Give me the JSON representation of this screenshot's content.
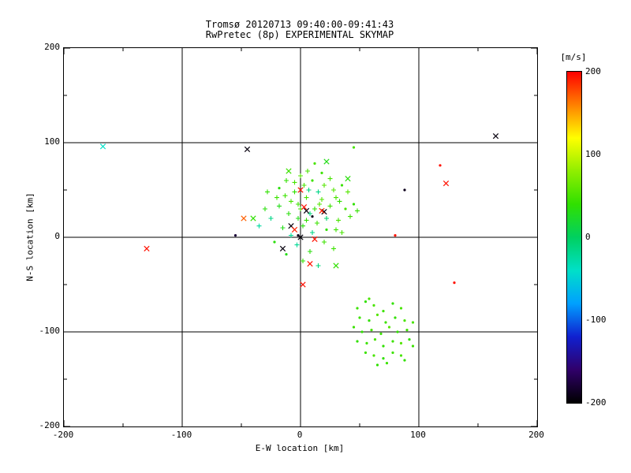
{
  "title": {
    "line1": "Tromsø 20120713 09:40:00-09:41:43",
    "line2": "RwPretec (8p) EXPERIMENTAL SKYMAP"
  },
  "axes": {
    "xlabel": "E-W location [km]",
    "ylabel": "N-S location [km]",
    "xlim": [
      -200,
      200
    ],
    "ylim": [
      -200,
      200
    ],
    "xticks": [
      -200,
      -100,
      0,
      100,
      200
    ],
    "yticks": [
      -200,
      -100,
      0,
      100,
      200
    ],
    "grid": [
      -100,
      0,
      100
    ],
    "grid_on": true
  },
  "colorbar": {
    "label": "[m/s]",
    "min": -200,
    "max": 200,
    "ticks": [
      200,
      100,
      0,
      -100,
      -200
    ],
    "stops": [
      [
        -200,
        "#000000"
      ],
      [
        -160,
        "#30006a"
      ],
      [
        -120,
        "#1020d0"
      ],
      [
        -80,
        "#00a0ff"
      ],
      [
        -40,
        "#00e0c8"
      ],
      [
        0,
        "#00d060"
      ],
      [
        40,
        "#30e000"
      ],
      [
        80,
        "#90ee00"
      ],
      [
        120,
        "#ffff00"
      ],
      [
        160,
        "#ff8000"
      ],
      [
        200,
        "#ff0000"
      ]
    ]
  },
  "chart_data": {
    "type": "scatter",
    "title": "Tromsø 20120713 09:40:00-09:41:43 / RwPretec (8p) EXPERIMENTAL SKYMAP",
    "xlabel": "E-W location [km]",
    "ylabel": "N-S location [km]",
    "value_label": "[m/s]",
    "xlim": [
      -200,
      200
    ],
    "ylim": [
      -200,
      200
    ],
    "vlim": [
      -200,
      200
    ],
    "legend_position": "colorbar-right",
    "point_format": "[x_km, y_km, velocity_mps, symbol(d=dot,p=plus,x=cross)]",
    "points": [
      [
        -2,
        35,
        45,
        "p"
      ],
      [
        5,
        42,
        50,
        "p"
      ],
      [
        12,
        30,
        40,
        "p"
      ],
      [
        -10,
        25,
        35,
        "p"
      ],
      [
        18,
        40,
        55,
        "p"
      ],
      [
        25,
        33,
        45,
        "p"
      ],
      [
        -18,
        33,
        30,
        "p"
      ],
      [
        3,
        55,
        50,
        "p"
      ],
      [
        10,
        60,
        45,
        "d"
      ],
      [
        20,
        55,
        55,
        "p"
      ],
      [
        -5,
        48,
        40,
        "p"
      ],
      [
        30,
        42,
        50,
        "p"
      ],
      [
        -25,
        20,
        -15,
        "p"
      ],
      [
        -15,
        10,
        30,
        "p"
      ],
      [
        -8,
        2,
        -20,
        "p"
      ],
      [
        2,
        12,
        35,
        "p"
      ],
      [
        14,
        15,
        45,
        "p"
      ],
      [
        22,
        8,
        40,
        "d"
      ],
      [
        32,
        18,
        50,
        "p"
      ],
      [
        8,
        25,
        -10,
        "p"
      ],
      [
        -2,
        20,
        30,
        "p"
      ],
      [
        -20,
        42,
        45,
        "p"
      ],
      [
        -30,
        30,
        35,
        "p"
      ],
      [
        38,
        30,
        50,
        "d"
      ],
      [
        42,
        22,
        45,
        "p"
      ],
      [
        15,
        48,
        -15,
        "p"
      ],
      [
        28,
        50,
        55,
        "p"
      ],
      [
        6,
        70,
        50,
        "p"
      ],
      [
        18,
        68,
        45,
        "d"
      ],
      [
        -12,
        60,
        40,
        "p"
      ],
      [
        0,
        65,
        55,
        "p"
      ],
      [
        12,
        78,
        50,
        "d"
      ],
      [
        -3,
        -8,
        -20,
        "p"
      ],
      [
        8,
        -15,
        35,
        "p"
      ],
      [
        20,
        -5,
        45,
        "p"
      ],
      [
        -12,
        -18,
        30,
        "d"
      ],
      [
        2,
        -25,
        40,
        "p"
      ],
      [
        15,
        -30,
        -10,
        "p"
      ],
      [
        28,
        -12,
        45,
        "p"
      ],
      [
        -22,
        -5,
        35,
        "d"
      ],
      [
        35,
        5,
        50,
        "p"
      ],
      [
        45,
        35,
        40,
        "d"
      ],
      [
        40,
        48,
        55,
        "p"
      ],
      [
        -35,
        12,
        -25,
        "p"
      ],
      [
        -28,
        48,
        40,
        "p"
      ],
      [
        22,
        20,
        -5,
        "p"
      ],
      [
        30,
        8,
        45,
        "p"
      ],
      [
        -8,
        38,
        50,
        "p"
      ],
      [
        -18,
        52,
        35,
        "d"
      ],
      [
        5,
        18,
        40,
        "p"
      ],
      [
        25,
        62,
        50,
        "p"
      ],
      [
        35,
        55,
        45,
        "d"
      ],
      [
        48,
        28,
        40,
        "p"
      ],
      [
        10,
        5,
        -15,
        "p"
      ],
      [
        0,
        30,
        45,
        "p"
      ],
      [
        -5,
        58,
        50,
        "p"
      ],
      [
        16,
        35,
        55,
        "p"
      ],
      [
        33,
        38,
        40,
        "p"
      ],
      [
        -13,
        44,
        45,
        "p"
      ],
      [
        7,
        50,
        -10,
        "p"
      ],
      [
        22,
        80,
        30,
        "x"
      ],
      [
        -40,
        20,
        40,
        "x"
      ],
      [
        40,
        62,
        35,
        "x"
      ],
      [
        -10,
        70,
        45,
        "x"
      ],
      [
        30,
        -30,
        40,
        "x"
      ],
      [
        48,
        -75,
        45,
        "d"
      ],
      [
        55,
        -68,
        40,
        "d"
      ],
      [
        62,
        -72,
        50,
        "d"
      ],
      [
        70,
        -78,
        45,
        "d"
      ],
      [
        78,
        -70,
        40,
        "d"
      ],
      [
        85,
        -75,
        50,
        "d"
      ],
      [
        50,
        -85,
        45,
        "d"
      ],
      [
        58,
        -88,
        40,
        "d"
      ],
      [
        65,
        -82,
        55,
        "d"
      ],
      [
        72,
        -90,
        45,
        "d"
      ],
      [
        80,
        -85,
        40,
        "d"
      ],
      [
        88,
        -88,
        50,
        "d"
      ],
      [
        45,
        -95,
        45,
        "d"
      ],
      [
        52,
        -100,
        40,
        "d"
      ],
      [
        60,
        -98,
        50,
        "d"
      ],
      [
        68,
        -102,
        45,
        "d"
      ],
      [
        75,
        -95,
        55,
        "d"
      ],
      [
        82,
        -100,
        40,
        "d"
      ],
      [
        90,
        -98,
        45,
        "d"
      ],
      [
        95,
        -90,
        50,
        "d"
      ],
      [
        48,
        -110,
        40,
        "d"
      ],
      [
        56,
        -112,
        45,
        "d"
      ],
      [
        63,
        -108,
        50,
        "d"
      ],
      [
        70,
        -115,
        40,
        "d"
      ],
      [
        78,
        -110,
        45,
        "d"
      ],
      [
        85,
        -112,
        55,
        "d"
      ],
      [
        92,
        -108,
        40,
        "d"
      ],
      [
        55,
        -122,
        45,
        "d"
      ],
      [
        62,
        -125,
        50,
        "d"
      ],
      [
        70,
        -128,
        40,
        "d"
      ],
      [
        78,
        -122,
        45,
        "d"
      ],
      [
        85,
        -125,
        50,
        "d"
      ],
      [
        65,
        -135,
        40,
        "d"
      ],
      [
        73,
        -133,
        45,
        "d"
      ],
      [
        58,
        -65,
        50,
        "d"
      ],
      [
        95,
        -115,
        45,
        "d"
      ],
      [
        88,
        -130,
        40,
        "d"
      ],
      [
        -167,
        96,
        -40,
        "x"
      ],
      [
        -45,
        93,
        -195,
        "x"
      ],
      [
        165,
        107,
        -195,
        "x"
      ],
      [
        118,
        76,
        195,
        "d"
      ],
      [
        123,
        57,
        195,
        "x"
      ],
      [
        88,
        50,
        -190,
        "d"
      ],
      [
        -130,
        -12,
        195,
        "x"
      ],
      [
        130,
        -48,
        195,
        "d"
      ],
      [
        2,
        -50,
        195,
        "x"
      ],
      [
        0,
        50,
        195,
        "x"
      ],
      [
        45,
        95,
        50,
        "d"
      ],
      [
        80,
        2,
        195,
        "d"
      ],
      [
        -55,
        2,
        -180,
        "d"
      ],
      [
        -48,
        20,
        170,
        "x"
      ],
      [
        0,
        0,
        -195,
        "x"
      ],
      [
        -8,
        12,
        -195,
        "x"
      ],
      [
        5,
        28,
        -195,
        "x"
      ],
      [
        -15,
        -12,
        -195,
        "x"
      ],
      [
        20,
        27,
        -195,
        "x"
      ],
      [
        3,
        32,
        195,
        "x"
      ],
      [
        18,
        28,
        190,
        "x"
      ],
      [
        -5,
        8,
        190,
        "x"
      ],
      [
        12,
        -2,
        195,
        "x"
      ],
      [
        8,
        -28,
        195,
        "x"
      ],
      [
        -2,
        2,
        -190,
        "d"
      ],
      [
        10,
        22,
        -190,
        "d"
      ]
    ]
  }
}
